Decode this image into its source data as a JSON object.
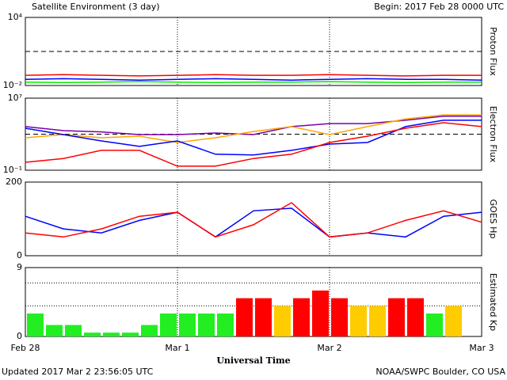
{
  "title": "Satellite Environment (3 day)",
  "begin": "Begin:  2017 Feb 28 0000 UTC",
  "updated": "Updated 2017 Mar  2 23:56:05 UTC",
  "credit": "NOAA/SWPC Boulder, CO USA",
  "x_axis": {
    "label": "Universal Time",
    "xlim": [
      0,
      72
    ],
    "xticks": [
      {
        "value": 0,
        "label": "Feb 28"
      },
      {
        "value": 24,
        "label": "Mar 1"
      },
      {
        "value": 48,
        "label": "Mar 2"
      },
      {
        "value": 72,
        "label": "Mar 3"
      }
    ]
  },
  "chart_data": [
    {
      "type": "line",
      "ylabel": "Proton Flux",
      "log": true,
      "ylim": [
        0.01,
        10000
      ],
      "yticks": [
        {
          "value": 10000,
          "label": "10⁴"
        },
        {
          "value": 0.01,
          "label": "10⁻²"
        }
      ],
      "threshold": 10,
      "x": [
        0,
        6,
        12,
        18,
        24,
        30,
        36,
        42,
        48,
        54,
        60,
        66,
        72
      ],
      "series": [
        {
          "color": "#0000ff",
          "values": [
            0.035,
            0.04,
            0.035,
            0.03,
            0.035,
            0.04,
            0.035,
            0.03,
            0.035,
            0.04,
            0.035,
            0.035,
            0.03
          ]
        },
        {
          "color": "#00ee00",
          "values": [
            0.02,
            0.018,
            0.02,
            0.022,
            0.02,
            0.018,
            0.02,
            0.02,
            0.022,
            0.02,
            0.018,
            0.02,
            0.02
          ]
        },
        {
          "color": "#ff0000",
          "values": [
            0.08,
            0.09,
            0.08,
            0.07,
            0.08,
            0.09,
            0.08,
            0.08,
            0.09,
            0.08,
            0.07,
            0.08,
            0.08
          ]
        }
      ]
    },
    {
      "type": "line",
      "ylabel": "Electron Flux",
      "log": true,
      "ylim": [
        0.1,
        10000000
      ],
      "yticks": [
        {
          "value": 10000000,
          "label": "10⁷"
        },
        {
          "value": 0.1,
          "label": "10⁻¹"
        }
      ],
      "threshold": 1000,
      "x": [
        0,
        6,
        12,
        18,
        24,
        30,
        36,
        42,
        48,
        54,
        60,
        66,
        72
      ],
      "series": [
        {
          "color": "#7a00a8",
          "values": [
            7000,
            2500,
            1800,
            900,
            900,
            1350,
            900,
            7000,
            15000,
            15000,
            35000,
            100000,
            100000
          ]
        },
        {
          "color": "#ffa500",
          "values": [
            400,
            900,
            400,
            600,
            120,
            400,
            2000,
            7000,
            900,
            7000,
            50000,
            140000,
            140000
          ]
        },
        {
          "color": "#0000ff",
          "values": [
            4600,
            900,
            180,
            44,
            180,
            6,
            5,
            16,
            80,
            120,
            7000,
            35000,
            35000
          ]
        },
        {
          "color": "#ff0000",
          "values": [
            0.75,
            2,
            16,
            16,
            0.28,
            0.28,
            2,
            6,
            120,
            600,
            4600,
            19000,
            7000
          ]
        }
      ]
    },
    {
      "type": "line",
      "ylabel": "GOES Hp",
      "log": false,
      "ylim": [
        0,
        200
      ],
      "yticks": [
        200,
        0
      ],
      "x": [
        0,
        6,
        12,
        18,
        24,
        30,
        36,
        42,
        48,
        54,
        60,
        66,
        72
      ],
      "series": [
        {
          "color": "#0000ff",
          "values": [
            107,
            73,
            62,
            96,
            118,
            51,
            122,
            129,
            51,
            62,
            51,
            107,
            118
          ]
        },
        {
          "color": "#ff0000",
          "values": [
            62,
            51,
            73,
            107,
            118,
            51,
            84,
            144,
            51,
            62,
            96,
            122,
            91
          ]
        }
      ]
    },
    {
      "type": "bar",
      "ylabel": "Estimated Kp",
      "log": false,
      "ylim": [
        0,
        9
      ],
      "yticks": [
        9,
        0
      ],
      "gridlines": [
        4,
        7
      ],
      "barwidth": 3,
      "x": [
        0,
        3,
        6,
        9,
        12,
        15,
        18,
        21,
        24,
        27,
        30,
        33,
        36,
        39,
        42,
        45,
        48,
        51,
        54,
        57,
        60,
        63,
        66
      ],
      "values": [
        3,
        1.5,
        1.5,
        0.5,
        0.5,
        0.5,
        1.5,
        3,
        3,
        3,
        3,
        5,
        5,
        4,
        5,
        6,
        5,
        4,
        4,
        5,
        5,
        3,
        4
      ],
      "colors": [
        "#22ee22",
        "#22ee22",
        "#22ee22",
        "#22ee22",
        "#22ee22",
        "#22ee22",
        "#22ee22",
        "#22ee22",
        "#22ee22",
        "#22ee22",
        "#22ee22",
        "#ff0000",
        "#ff0000",
        "#ffcc00",
        "#ff0000",
        "#ff0000",
        "#ff0000",
        "#ffcc00",
        "#ffcc00",
        "#ff0000",
        "#ff0000",
        "#22ee22",
        "#ffcc00"
      ]
    }
  ]
}
